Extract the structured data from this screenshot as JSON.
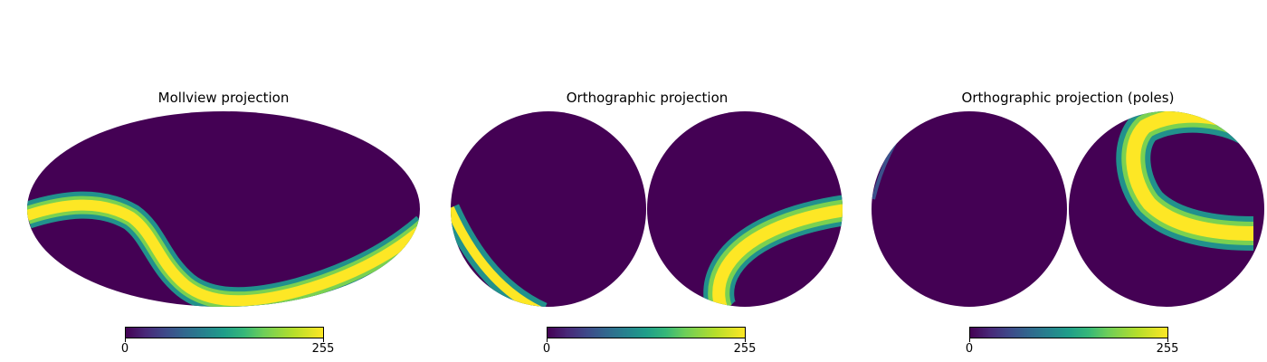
{
  "panels": [
    {
      "title": "Mollview projection",
      "colorbar": {
        "min_label": "0",
        "max_label": "255"
      }
    },
    {
      "title": "Orthographic projection",
      "colorbar": {
        "min_label": "0",
        "max_label": "255"
      }
    },
    {
      "title": "Orthographic projection (poles)",
      "colorbar": {
        "min_label": "0",
        "max_label": "255"
      }
    }
  ],
  "colors": {
    "background_map": "#440154",
    "band_core": "#fde725",
    "band_edge": "#21918c",
    "colormap": "viridis"
  },
  "chart_data": [
    {
      "type": "heatmap",
      "projection": "mollweide",
      "title": "Mollview projection",
      "colorbar": {
        "min": 0,
        "max": 255,
        "colormap": "viridis"
      }
    },
    {
      "type": "heatmap",
      "projection": "orthographic",
      "title": "Orthographic projection",
      "colorbar": {
        "min": 0,
        "max": 255,
        "colormap": "viridis"
      }
    },
    {
      "type": "heatmap",
      "projection": "orthographic-poles",
      "title": "Orthographic projection (poles)",
      "colorbar": {
        "min": 0,
        "max": 255,
        "colormap": "viridis"
      }
    }
  ]
}
